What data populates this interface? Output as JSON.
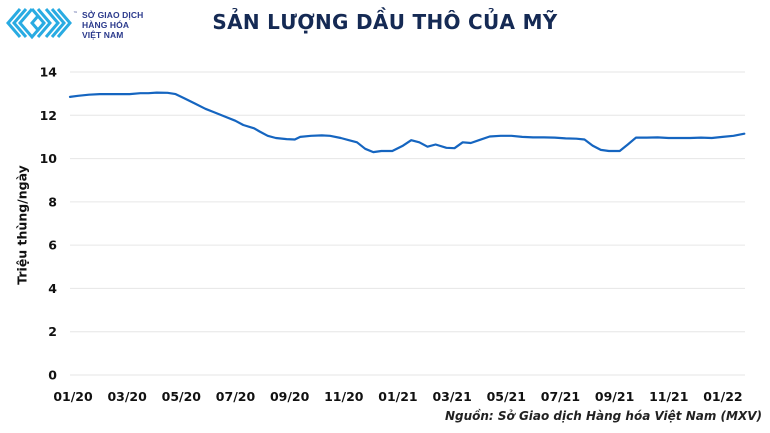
{
  "logo": {
    "lines": [
      "SỞ GIAO DỊCH",
      "HÀNG HÓA",
      "VIỆT NAM"
    ],
    "tm": "™",
    "color": "#29abe2"
  },
  "title": "SẢN LƯỢNG DẦU THÔ CỦA MỸ",
  "source": "Nguồn: Sở Giao dịch Hàng hóa Việt Nam (MXV)",
  "chart_data": {
    "type": "line",
    "title": "SẢN LƯỢNG DẦU THÔ CỦA MỸ",
    "xlabel": "",
    "ylabel": "Triệu thùng/ngày",
    "ylim": [
      0,
      14
    ],
    "yticks": [
      0,
      2,
      4,
      6,
      8,
      10,
      12,
      14
    ],
    "grid": true,
    "legend": "none",
    "line_color": "#1565c0",
    "x_tick_labels": [
      "01/20",
      "03/20",
      "05/20",
      "07/20",
      "09/20",
      "11/20",
      "01/21",
      "03/21",
      "05/21",
      "07/21",
      "09/21",
      "11/21",
      "01/22"
    ],
    "x_range_months": [
      0,
      25.5
    ],
    "series": [
      {
        "name": "US crude oil production",
        "points_month_value": [
          [
            0.0,
            12.85
          ],
          [
            0.3,
            12.9
          ],
          [
            0.7,
            12.95
          ],
          [
            1.1,
            12.98
          ],
          [
            1.5,
            12.98
          ],
          [
            1.9,
            12.98
          ],
          [
            2.2,
            12.98
          ],
          [
            2.6,
            13.02
          ],
          [
            2.9,
            13.02
          ],
          [
            3.2,
            13.05
          ],
          [
            3.6,
            13.04
          ],
          [
            3.9,
            12.98
          ],
          [
            4.2,
            12.8
          ],
          [
            4.6,
            12.55
          ],
          [
            5.0,
            12.3
          ],
          [
            5.3,
            12.15
          ],
          [
            5.7,
            11.95
          ],
          [
            6.1,
            11.75
          ],
          [
            6.4,
            11.55
          ],
          [
            6.8,
            11.4
          ],
          [
            7.0,
            11.25
          ],
          [
            7.3,
            11.05
          ],
          [
            7.6,
            10.95
          ],
          [
            8.0,
            10.9
          ],
          [
            8.3,
            10.88
          ],
          [
            8.5,
            11.0
          ],
          [
            8.9,
            11.05
          ],
          [
            9.3,
            11.07
          ],
          [
            9.6,
            11.05
          ],
          [
            10.0,
            10.95
          ],
          [
            10.3,
            10.85
          ],
          [
            10.6,
            10.75
          ],
          [
            10.9,
            10.45
          ],
          [
            11.2,
            10.3
          ],
          [
            11.5,
            10.35
          ],
          [
            11.9,
            10.35
          ],
          [
            12.3,
            10.6
          ],
          [
            12.6,
            10.85
          ],
          [
            12.9,
            10.75
          ],
          [
            13.2,
            10.55
          ],
          [
            13.5,
            10.65
          ],
          [
            13.9,
            10.5
          ],
          [
            14.2,
            10.48
          ],
          [
            14.5,
            10.75
          ],
          [
            14.8,
            10.72
          ],
          [
            15.1,
            10.85
          ],
          [
            15.5,
            11.02
          ],
          [
            15.9,
            11.05
          ],
          [
            16.3,
            11.05
          ],
          [
            16.7,
            11.0
          ],
          [
            17.1,
            10.98
          ],
          [
            17.5,
            10.98
          ],
          [
            17.9,
            10.97
          ],
          [
            18.3,
            10.93
          ],
          [
            18.7,
            10.92
          ],
          [
            19.0,
            10.88
          ],
          [
            19.3,
            10.6
          ],
          [
            19.6,
            10.4
          ],
          [
            19.9,
            10.35
          ],
          [
            20.3,
            10.35
          ],
          [
            20.6,
            10.65
          ],
          [
            20.9,
            10.97
          ],
          [
            21.3,
            10.97
          ],
          [
            21.7,
            10.98
          ],
          [
            22.1,
            10.95
          ],
          [
            22.5,
            10.95
          ],
          [
            22.9,
            10.95
          ],
          [
            23.3,
            10.97
          ],
          [
            23.7,
            10.95
          ],
          [
            24.1,
            11.0
          ],
          [
            24.5,
            11.05
          ],
          [
            24.9,
            11.15
          ]
        ]
      }
    ]
  }
}
